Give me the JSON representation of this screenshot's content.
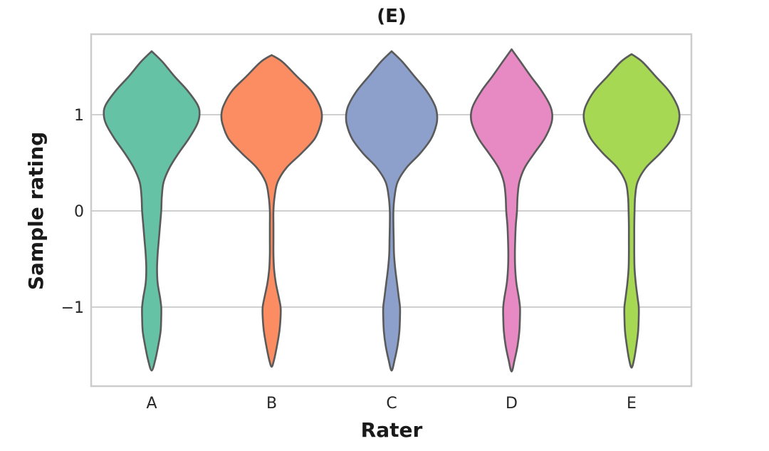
{
  "chart_data": {
    "type": "violin",
    "title": "(E)",
    "xlabel": "Rater",
    "ylabel": "Sample rating",
    "categories": [
      "A",
      "B",
      "C",
      "D",
      "E"
    ],
    "colors": [
      "#66c2a5",
      "#fc8d62",
      "#8da0cb",
      "#e78ac3",
      "#a6d854"
    ],
    "yticks": [
      {
        "value": 1,
        "label": "1"
      },
      {
        "value": 0,
        "label": "0"
      },
      {
        "value": -1,
        "label": "−1"
      }
    ],
    "ylim": [
      -1.85,
      1.85
    ],
    "grid": true,
    "density_y": [
      -1.66,
      -1.55,
      -1.4,
      -1.25,
      -1.1,
      -1.0,
      -0.9,
      -0.75,
      -0.6,
      -0.45,
      -0.3,
      -0.15,
      0.0,
      0.15,
      0.3,
      0.45,
      0.6,
      0.75,
      0.9,
      1.0,
      1.1,
      1.25,
      1.4,
      1.55,
      1.66
    ],
    "violins": [
      {
        "rater": "A",
        "ymin": -1.66,
        "ymax": 1.66,
        "widths": [
          0.01,
          0.06,
          0.11,
          0.15,
          0.16,
          0.16,
          0.14,
          0.1,
          0.09,
          0.1,
          0.12,
          0.14,
          0.16,
          0.17,
          0.2,
          0.3,
          0.45,
          0.62,
          0.76,
          0.8,
          0.77,
          0.6,
          0.38,
          0.18,
          0.08
        ]
      },
      {
        "rater": "B",
        "ymin": -1.62,
        "ymax": 1.62,
        "widths": [
          0.01,
          0.04,
          0.09,
          0.13,
          0.15,
          0.15,
          0.12,
          0.07,
          0.04,
          0.03,
          0.03,
          0.03,
          0.03,
          0.05,
          0.1,
          0.25,
          0.5,
          0.72,
          0.82,
          0.84,
          0.8,
          0.66,
          0.42,
          0.18,
          0.08
        ]
      },
      {
        "rater": "C",
        "ymin": -1.66,
        "ymax": 1.66,
        "widths": [
          0.01,
          0.05,
          0.1,
          0.13,
          0.14,
          0.14,
          0.12,
          0.09,
          0.06,
          0.04,
          0.035,
          0.03,
          0.03,
          0.05,
          0.1,
          0.25,
          0.48,
          0.66,
          0.75,
          0.76,
          0.72,
          0.58,
          0.38,
          0.18,
          0.08
        ]
      },
      {
        "rater": "D",
        "ymin": -1.67,
        "ymax": 1.68,
        "widths": [
          0.01,
          0.05,
          0.1,
          0.13,
          0.14,
          0.14,
          0.12,
          0.08,
          0.06,
          0.055,
          0.06,
          0.07,
          0.09,
          0.1,
          0.13,
          0.22,
          0.38,
          0.55,
          0.66,
          0.68,
          0.64,
          0.5,
          0.32,
          0.15,
          0.08
        ]
      },
      {
        "rater": "E",
        "ymin": -1.63,
        "ymax": 1.63,
        "widths": [
          0.01,
          0.04,
          0.08,
          0.11,
          0.12,
          0.12,
          0.1,
          0.07,
          0.05,
          0.045,
          0.045,
          0.045,
          0.05,
          0.06,
          0.1,
          0.24,
          0.48,
          0.68,
          0.78,
          0.8,
          0.76,
          0.62,
          0.4,
          0.18,
          0.08
        ]
      }
    ]
  }
}
